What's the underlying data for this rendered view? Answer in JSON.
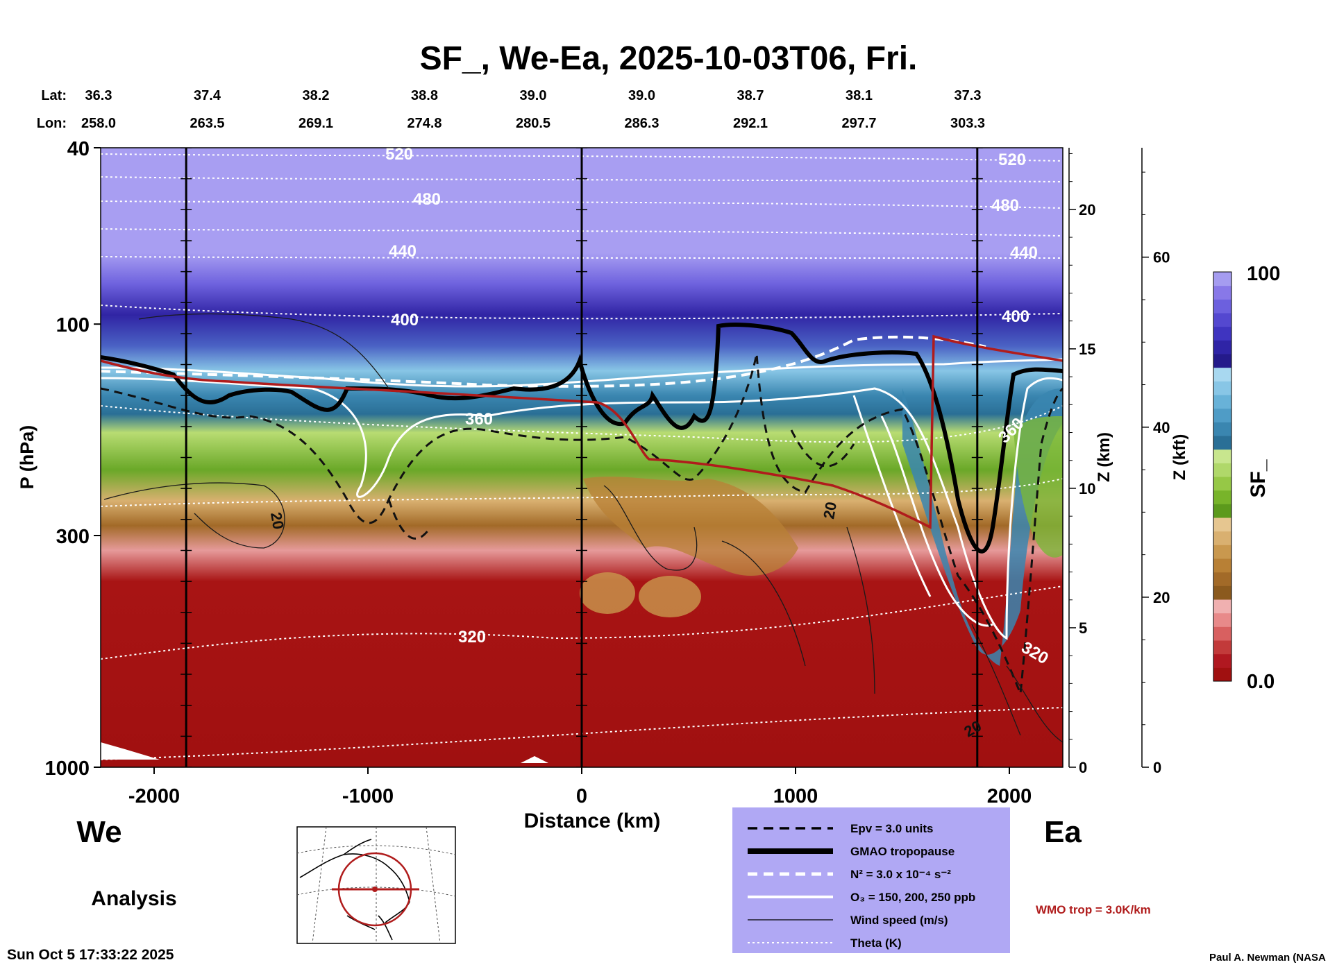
{
  "chart_data": {
    "type": "cross-section",
    "title": "SF_, We-Ea, 2025-10-03T06, Fri.",
    "xlabel": "Distance (km)",
    "ylabel": "P (hPa)",
    "x_range": [
      -2250,
      2250
    ],
    "x_ticks": [
      "-2000",
      "-1000",
      "0",
      "1000",
      "2000"
    ],
    "x_tick_values": [
      -2000,
      -1000,
      0,
      1000,
      2000
    ],
    "p_range": [
      1000,
      40
    ],
    "p_ticks": [
      "40",
      "100",
      "300",
      "1000"
    ],
    "p_tick_values": [
      40,
      100,
      300,
      1000
    ],
    "z_km_label": "Z (km)",
    "z_km_ticks": [
      "0",
      "5",
      "10",
      "15",
      "20"
    ],
    "z_km_values": [
      0,
      5,
      10,
      15,
      20
    ],
    "z_kft_label": "Z (kft)",
    "z_kft_ticks": [
      "0",
      "20",
      "40",
      "60"
    ],
    "z_kft_values": [
      0,
      20,
      40,
      60
    ],
    "lat_label": "Lat:",
    "lon_label": "Lon:",
    "lat": [
      "36.3",
      "37.4",
      "38.2",
      "38.8",
      "39.0",
      "39.0",
      "38.7",
      "38.1",
      "37.3"
    ],
    "lon": [
      "258.0",
      "263.5",
      "269.1",
      "274.8",
      "280.5",
      "286.3",
      "292.1",
      "297.7",
      "303.3"
    ],
    "vertical_marker_distances_km": [
      -1850,
      0,
      1850
    ],
    "colorbar": {
      "label": "SF_",
      "max_label": "100",
      "min_label": "0.0",
      "colors": [
        "#a01010",
        "#b01820",
        "#c23a3a",
        "#d86060",
        "#e88a8a",
        "#f0b0b0",
        "#8b5a1e",
        "#a26a28",
        "#b88035",
        "#c9984e",
        "#d9b070",
        "#e6c690",
        "#5c9a1c",
        "#78b42a",
        "#96c846",
        "#b0d86a",
        "#c8e68e",
        "#2a6f96",
        "#3a86b0",
        "#4f9cc6",
        "#68b2d8",
        "#88c6e6",
        "#a8d8f0",
        "#241a8a",
        "#2f24a6",
        "#3f34c0",
        "#5448d0",
        "#6c60de",
        "#8878e8",
        "#a59cf0"
      ]
    },
    "theta_labels": [
      "520",
      "480",
      "440",
      "400",
      "360",
      "320",
      "520",
      "480",
      "440",
      "400",
      "360",
      "320"
    ],
    "wind_labels": [
      "20",
      "20",
      "20"
    ],
    "legend": [
      {
        "style": "dashed-black",
        "label": "Epv = 3.0 units"
      },
      {
        "style": "thick-black",
        "label": "GMAO tropopause"
      },
      {
        "style": "dashed-white",
        "label": "N² = 3.0 x 10⁻⁴ s⁻²"
      },
      {
        "style": "solid-white",
        "label": "O₃ = 150, 200, 250 ppb"
      },
      {
        "style": "thin-black",
        "label": "Wind speed (m/s)"
      },
      {
        "style": "dotted-white",
        "label": "Theta (K)"
      }
    ],
    "wmo_label": "WMO trop = 3.0K/km",
    "wmo_color": "#b01c1c",
    "legend_bg": "#b0a8f4"
  },
  "labels": {
    "west": "We",
    "east": "Ea",
    "analysis": "Analysis",
    "timestamp": "Sun Oct  5 17:33:22 2025",
    "credit": "Paul A. Newman (NASA"
  }
}
